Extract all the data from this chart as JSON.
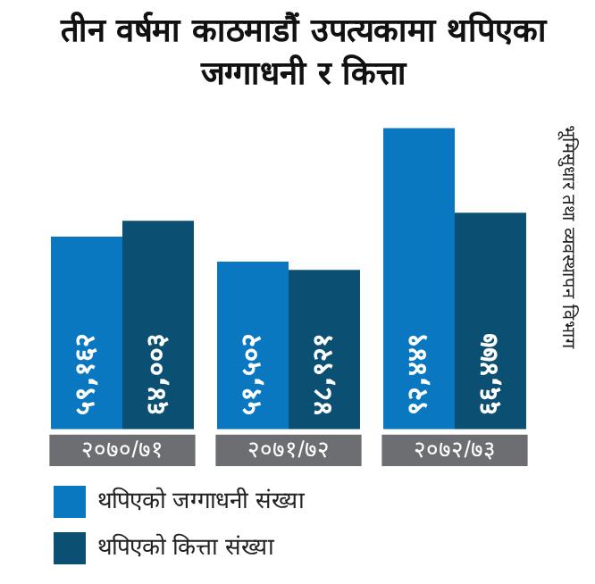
{
  "chart_data": {
    "type": "bar",
    "title": "तीन वर्षमा काठमाडौं उपत्यकामा थपिएका जग्गाधनी र कित्ता",
    "categories": [
      "२०७०/७१",
      "२०७१/७२",
      "२०७२/७३"
    ],
    "series": [
      {
        "name": "थपिएको जग्गाधनी संख्या",
        "color": "#0a78c0",
        "values": [
          59162,
          51502,
          92449
        ],
        "value_labels": [
          "५९,१६२",
          "५१,५०२",
          "९२,४४९"
        ]
      },
      {
        "name": "थपिएको कित्ता संख्या",
        "color": "#0b4f72",
        "values": [
          64003,
          48921,
          66477
        ],
        "value_labels": [
          "६४,००३",
          "४८,९२१",
          "६६,४७७"
        ]
      }
    ],
    "annotations": [
      "भूमिसुधार तथा व्यवस्थापन विभाग"
    ],
    "tick_labels": "x",
    "grid": false,
    "legend": "bottom left"
  }
}
